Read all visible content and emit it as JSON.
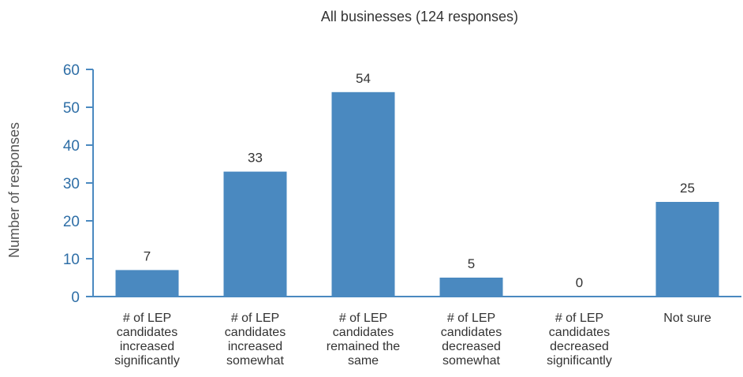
{
  "chart_data": {
    "type": "bar",
    "title": "All businesses (124 responses)",
    "ylabel": "Number of responses",
    "xlabel": "",
    "ylim": [
      0,
      60
    ],
    "yticks": [
      0,
      10,
      20,
      30,
      40,
      50,
      60
    ],
    "grid": false,
    "legend": "none",
    "categories": [
      [
        "# of LEP",
        "candidates",
        "increased",
        "significantly"
      ],
      [
        "# of LEP",
        "candidates",
        "increased",
        "somewhat"
      ],
      [
        "# of LEP",
        "candidates",
        "remained the",
        "same"
      ],
      [
        "# of LEP",
        "candidates",
        "decreased",
        "somewhat"
      ],
      [
        "# of LEP",
        "candidates",
        "decreased",
        "significantly"
      ],
      [
        "Not sure"
      ]
    ],
    "values": [
      7,
      33,
      54,
      5,
      0,
      25
    ],
    "colors": {
      "bar": "#4a89c0",
      "axis": "#4a89c0",
      "tick_text": "#2e6ea6"
    }
  }
}
